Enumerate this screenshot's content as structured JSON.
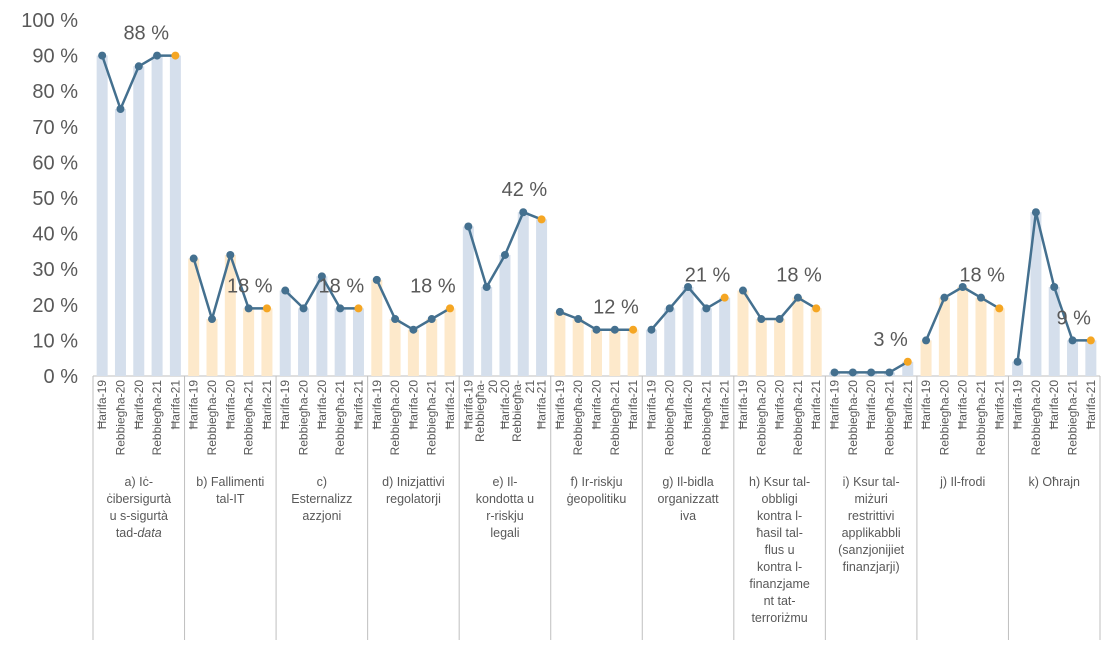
{
  "chart_data": {
    "type": "bar",
    "title": "",
    "xlabel": "",
    "ylabel": "",
    "ylim": [
      0,
      100
    ],
    "yticks": [
      "0 %",
      "10 %",
      "20 %",
      "30 %",
      "40 %",
      "50 %",
      "60 %",
      "70 %",
      "80 %",
      "90 %",
      "100 %"
    ],
    "colors": {
      "bar_blue": "#d5dfec",
      "bar_orange": "#fde9cb",
      "line": "#44708f",
      "marker": "#44708f",
      "last_marker": "#f5a623",
      "axis": "#bfbfbf",
      "text": "#595959"
    },
    "groups": [
      {
        "label": "a) Iċ-ċibersigurtà u s-sigurtà tad-data",
        "label_lines": [
          "a) Iċ-",
          "ċibersigurtà",
          "u s-sigurtà",
          "tad-data"
        ],
        "categories": [
          "Ħarifa-19",
          "Rebbiegħa-20",
          "Ħarifa-20",
          "Rebbiegħa-21",
          "Ħarifa-21"
        ],
        "values": [
          90,
          75,
          87,
          90,
          90
        ],
        "bar_color": "blue",
        "annotation": "88 %"
      },
      {
        "label": "b) Fallimenti tal-IT",
        "label_lines": [
          "b) Fallimenti",
          "tal-IT"
        ],
        "categories": [
          "Ħarifa-19",
          "Rebbiegħa-20",
          "Ħarifa-20",
          "Rebbiegħa-21",
          "Ħarifa-21"
        ],
        "values": [
          33,
          16,
          34,
          19,
          19
        ],
        "bar_color": "orange",
        "annotation": "18 %"
      },
      {
        "label": "c) Esternalizzazzjoni",
        "label_lines": [
          "c)",
          "Esternalizz",
          "azzjoni"
        ],
        "categories": [
          "Ħarifa-19",
          "Rebbiegħa-20",
          "Ħarifa-20",
          "Rebbiegħa-21",
          "Ħarifa-21"
        ],
        "values": [
          24,
          19,
          28,
          19,
          19
        ],
        "bar_color": "blue",
        "annotation": "18 %"
      },
      {
        "label": "d) Inizjattivi regolatorji",
        "label_lines": [
          "d) Inizjattivi",
          "regolatorji"
        ],
        "categories": [
          "Ħarifa-19",
          "Rebbiegħa-20",
          "Ħarifa-20",
          "Rebbiegħa-21",
          "Ħarifa-21"
        ],
        "values": [
          27,
          16,
          13,
          16,
          19
        ],
        "bar_color": "orange",
        "annotation": "18 %"
      },
      {
        "label": "e) Il-kondotta u r-riskju legali",
        "label_lines": [
          "e) Il-",
          "kondotta u",
          "r-riskju",
          "legali"
        ],
        "categories": [
          "Ħarifa-19",
          "Rebbiegħa-20",
          "Ħarifa-20",
          "Rebbiegħa-21",
          "Ħarifa-21"
        ],
        "category_lines": [
          [
            "Ħarifa-19"
          ],
          [
            "Rebbiegħa-",
            "20"
          ],
          [
            "Ħarifa-20"
          ],
          [
            "Rebbiegħa-",
            "21"
          ],
          [
            "Ħarifa-21"
          ]
        ],
        "values": [
          42,
          25,
          34,
          46,
          44
        ],
        "bar_color": "blue",
        "annotation": "42 %"
      },
      {
        "label": "f) Ir-riskju ġeopolitiku",
        "label_lines": [
          "f) Ir-riskju",
          "ġeopolitiku"
        ],
        "categories": [
          "Ħarifa-19",
          "Rebbiegħa-20",
          "Ħarifa-20",
          "Rebbiegħa-21",
          "Ħarifa-21"
        ],
        "values": [
          18,
          16,
          13,
          13,
          13
        ],
        "bar_color": "orange",
        "annotation": "12 %"
      },
      {
        "label": "g) Il-bidla organizzattiva",
        "label_lines": [
          "g) Il-bidla",
          "organizzatt",
          "iva"
        ],
        "categories": [
          "Ħarifa-19",
          "Rebbiegħa-20",
          "Ħarifa-20",
          "Rebbiegħa-21",
          "Ħarifa-21"
        ],
        "values": [
          13,
          19,
          25,
          19,
          22
        ],
        "bar_color": "blue",
        "annotation": "21 %"
      },
      {
        "label": "h) Ksur tal-obbligi kontra l-ħasil tal-flus u kontra l-finanzjament tat-terroriżmu",
        "label_lines": [
          "h) Ksur tal-",
          "obbligi",
          "kontra l-",
          "ħasil tal-",
          "flus u",
          "kontra l-",
          "finanzjame",
          "nt tat-",
          "terroriżmu"
        ],
        "categories": [
          "Ħarifa-19",
          "Rebbiegħa-20",
          "Ħarifa-20",
          "Rebbiegħa-21",
          "Ħarifa-21"
        ],
        "values": [
          24,
          16,
          16,
          22,
          19
        ],
        "bar_color": "orange",
        "annotation": "18 %"
      },
      {
        "label": "i) Ksur tal-miżuri restrittivi applikabbli (sanzjonijiet finanzjarji)",
        "label_lines": [
          "i) Ksur tal-",
          "miżuri",
          "restrittivi",
          "applikabbli",
          "(sanzjonijiet",
          "finanzjarji)"
        ],
        "categories": [
          "Ħarifa-19",
          "Rebbiegħa-20",
          "Ħarifa-20",
          "Rebbiegħa-21",
          "Ħarifa-21"
        ],
        "values": [
          1,
          1,
          1,
          1,
          4
        ],
        "bar_color": "blue",
        "annotation": "3 %"
      },
      {
        "label": "j) Il-frodi",
        "label_lines": [
          "j) Il-frodi"
        ],
        "categories": [
          "Ħarifa-19",
          "Rebbiegħa-20",
          "Ħarifa-20",
          "Rebbiegħa-21",
          "Ħarifa-21"
        ],
        "values": [
          10,
          22,
          25,
          22,
          19
        ],
        "bar_color": "orange",
        "annotation": "18 %"
      },
      {
        "label": "k) Oħrajn",
        "label_lines": [
          "k) Oħrajn"
        ],
        "categories": [
          "Ħarifa-19",
          "Rebbiegħa-20",
          "Ħarifa-20",
          "Rebbiegħa-21",
          "Ħarifa-21"
        ],
        "values": [
          4,
          46,
          25,
          10,
          10
        ],
        "bar_color": "blue",
        "annotation": "9 %"
      }
    ]
  }
}
